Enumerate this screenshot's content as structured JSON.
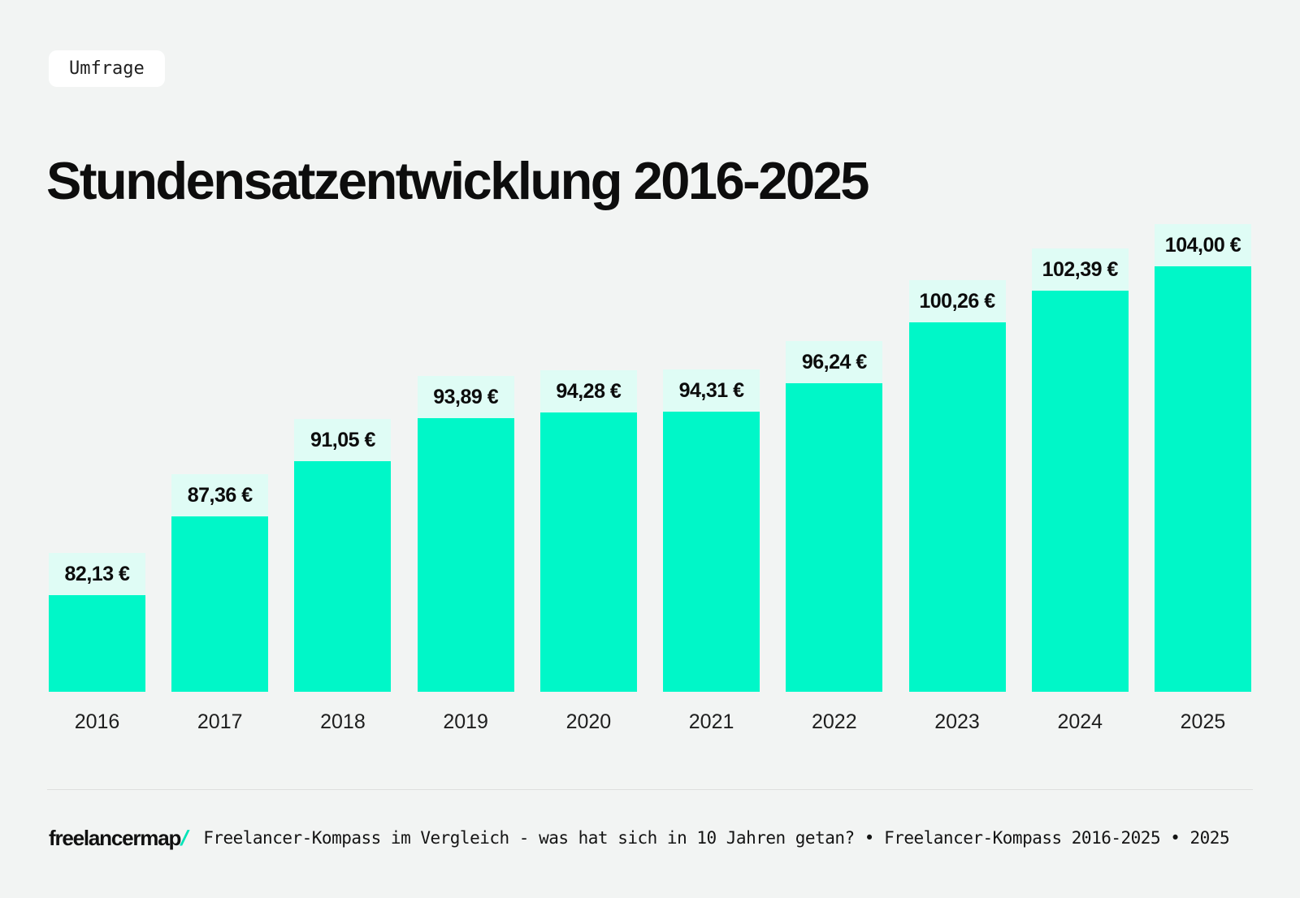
{
  "badge": {
    "label": "Umfrage"
  },
  "title": "Stundensatzentwicklung 2016-2025",
  "chart_data": {
    "type": "bar",
    "title": "Stundensatzentwicklung 2016-2025",
    "categories": [
      "2016",
      "2017",
      "2018",
      "2019",
      "2020",
      "2021",
      "2022",
      "2023",
      "2024",
      "2025"
    ],
    "values": [
      82.13,
      87.36,
      91.05,
      93.89,
      94.28,
      94.31,
      96.24,
      100.26,
      102.39,
      104.0
    ],
    "value_labels": [
      "82,13 €",
      "87,36 €",
      "91,05 €",
      "93,89 €",
      "94,28 €",
      "94,31 €",
      "96,24 €",
      "100,26 €",
      "102,39 €",
      "104,00 €"
    ],
    "unit": "€ per hour",
    "xlabel": "",
    "ylabel": "",
    "ylim": [
      75.7,
      104
    ],
    "grid": false,
    "legend": "none"
  },
  "footer": {
    "logo_text": "freelancermap",
    "logo_slash": "/",
    "source": "Freelancer-Kompass im Vergleich - was hat sich in 10 Jahren getan? • Freelancer-Kompass 2016-2025 • 2025"
  },
  "colors": {
    "background": "#F2F4F3",
    "bar": "#00F7C8",
    "value_chip_bg": "#DFFCF5",
    "badge_bg": "#FFFFFF",
    "text_dark": "#0D0D0D",
    "logo_slash": "#00E4B8",
    "divider": "#DEDFDE"
  }
}
